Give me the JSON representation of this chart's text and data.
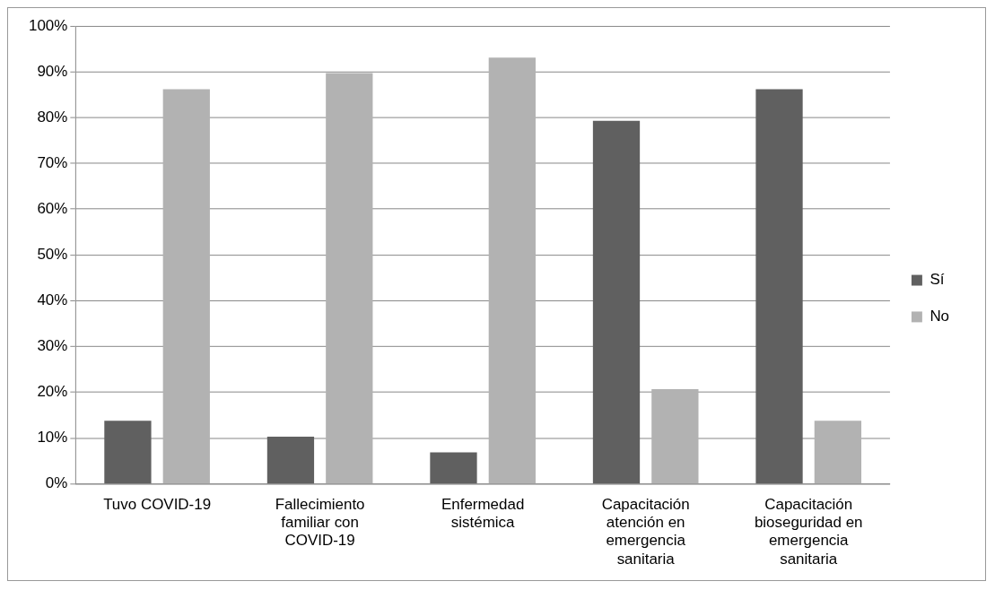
{
  "chart_data": {
    "type": "bar",
    "categories": [
      "Tuvo COVID-19",
      "Fallecimiento familiar con COVID-19",
      "Enfermedad sistémica",
      "Capacitación atención en emergencia sanitaria",
      "Capacitación bioseguridad en emergencia sanitaria"
    ],
    "series": [
      {
        "name": "Sí",
        "color": "#606060",
        "values": [
          13.8,
          10.3,
          6.9,
          79.3,
          86.2
        ]
      },
      {
        "name": "No",
        "color": "#b2b2b2",
        "values": [
          86.2,
          89.7,
          93.1,
          20.7,
          13.8
        ]
      }
    ],
    "ylim": [
      0,
      100
    ],
    "yticks": [
      {
        "value": 0,
        "label": "0%"
      },
      {
        "value": 10,
        "label": "10%"
      },
      {
        "value": 20,
        "label": "20%"
      },
      {
        "value": 30,
        "label": "30%"
      },
      {
        "value": 40,
        "label": "40%"
      },
      {
        "value": 50,
        "label": "50%"
      },
      {
        "value": 60,
        "label": "60%"
      },
      {
        "value": 70,
        "label": "70%"
      },
      {
        "value": 80,
        "label": "80%"
      },
      {
        "value": 90,
        "label": "90%"
      },
      {
        "value": 100,
        "label": "100%"
      }
    ],
    "grid": "y",
    "legend": "right"
  }
}
